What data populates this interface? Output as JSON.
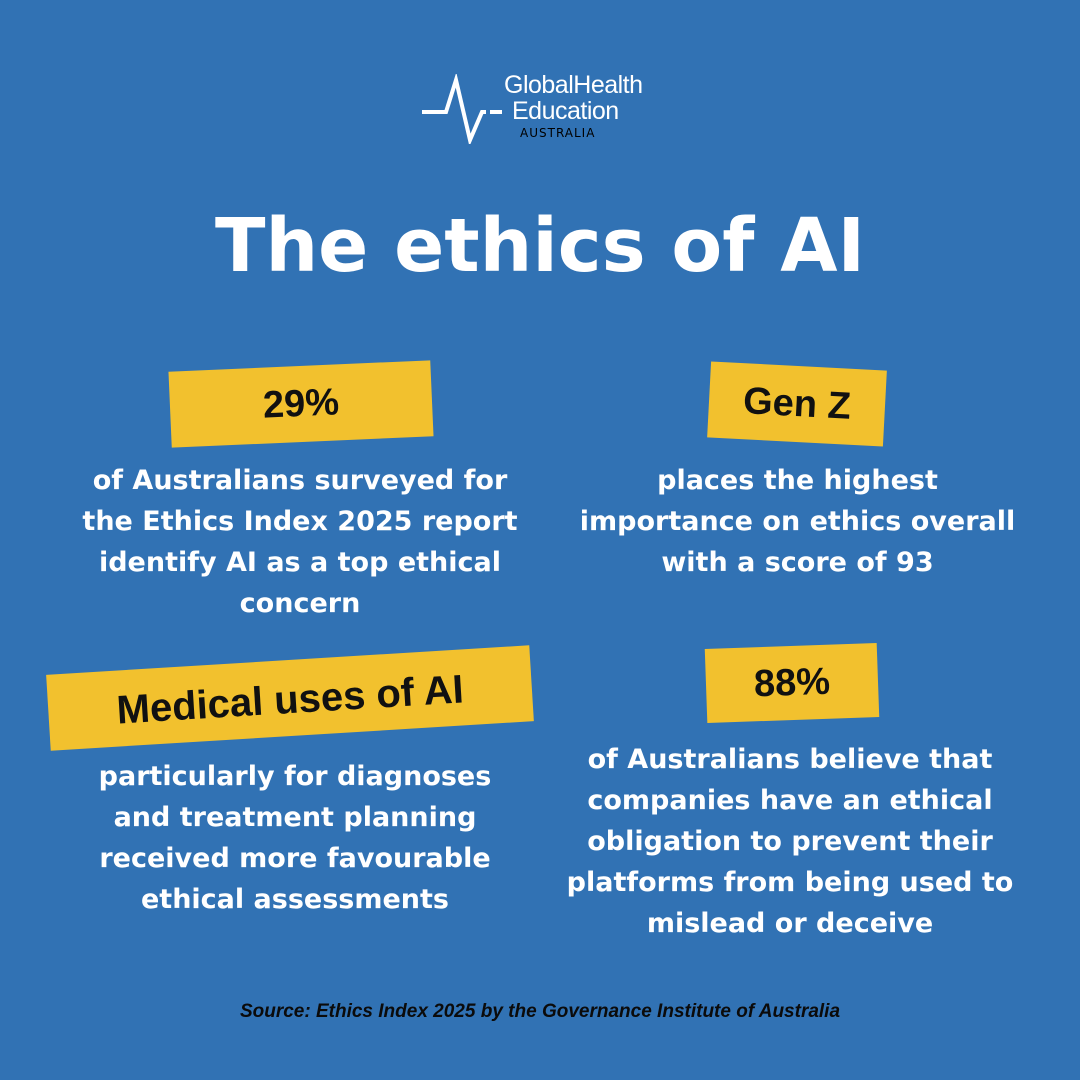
{
  "logo": {
    "line1": "GlobalHealth",
    "line2": "Education",
    "line3": "AUSTRALIA",
    "icon": "heartbeat-pulse-icon"
  },
  "title": "The ethics of AI",
  "stats": [
    {
      "tag": "29%",
      "text": "of Australians surveyed for the Ethics Index 2025 report identify AI as a top ethical concern"
    },
    {
      "tag": "Gen Z",
      "text": "places the highest importance on ethics overall with a score of 93"
    },
    {
      "tag": "Medical uses of AI",
      "text": "particularly for diagnoses and treatment planning received more favourable ethical assessments"
    },
    {
      "tag": "88%",
      "text": "of Australians believe that companies have an ethical obligation to prevent their platforms from being used to mislead or deceive"
    }
  ],
  "source": "Source: Ethics Index 2025 by the Governance Institute of Australia",
  "colors": {
    "background": "#3172b4",
    "tag": "#f2c12e",
    "text": "#ffffff",
    "source_text": "#0b0b0b"
  }
}
